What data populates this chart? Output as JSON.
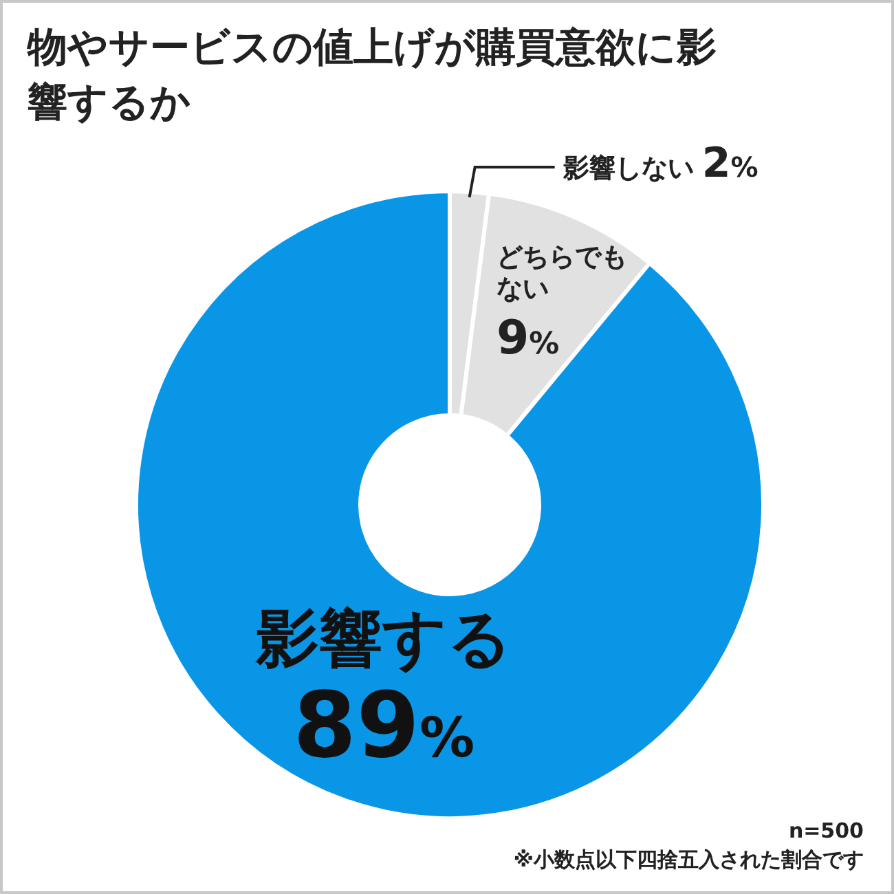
{
  "chart_data": {
    "type": "donut",
    "title": "物やサービスの値上げが購買意欲に影響するか",
    "categories": [
      "影響しない",
      "どちらでもない",
      "影響する"
    ],
    "values": [
      2,
      9,
      89
    ],
    "colors": [
      "#e1e1e1",
      "#e1e1e1",
      "#0a96e6"
    ],
    "value_labels": [
      "2%",
      "9%",
      "89%"
    ],
    "annotations": [
      "n=500",
      "※小数点以下四捨五入された割合です"
    ]
  }
}
